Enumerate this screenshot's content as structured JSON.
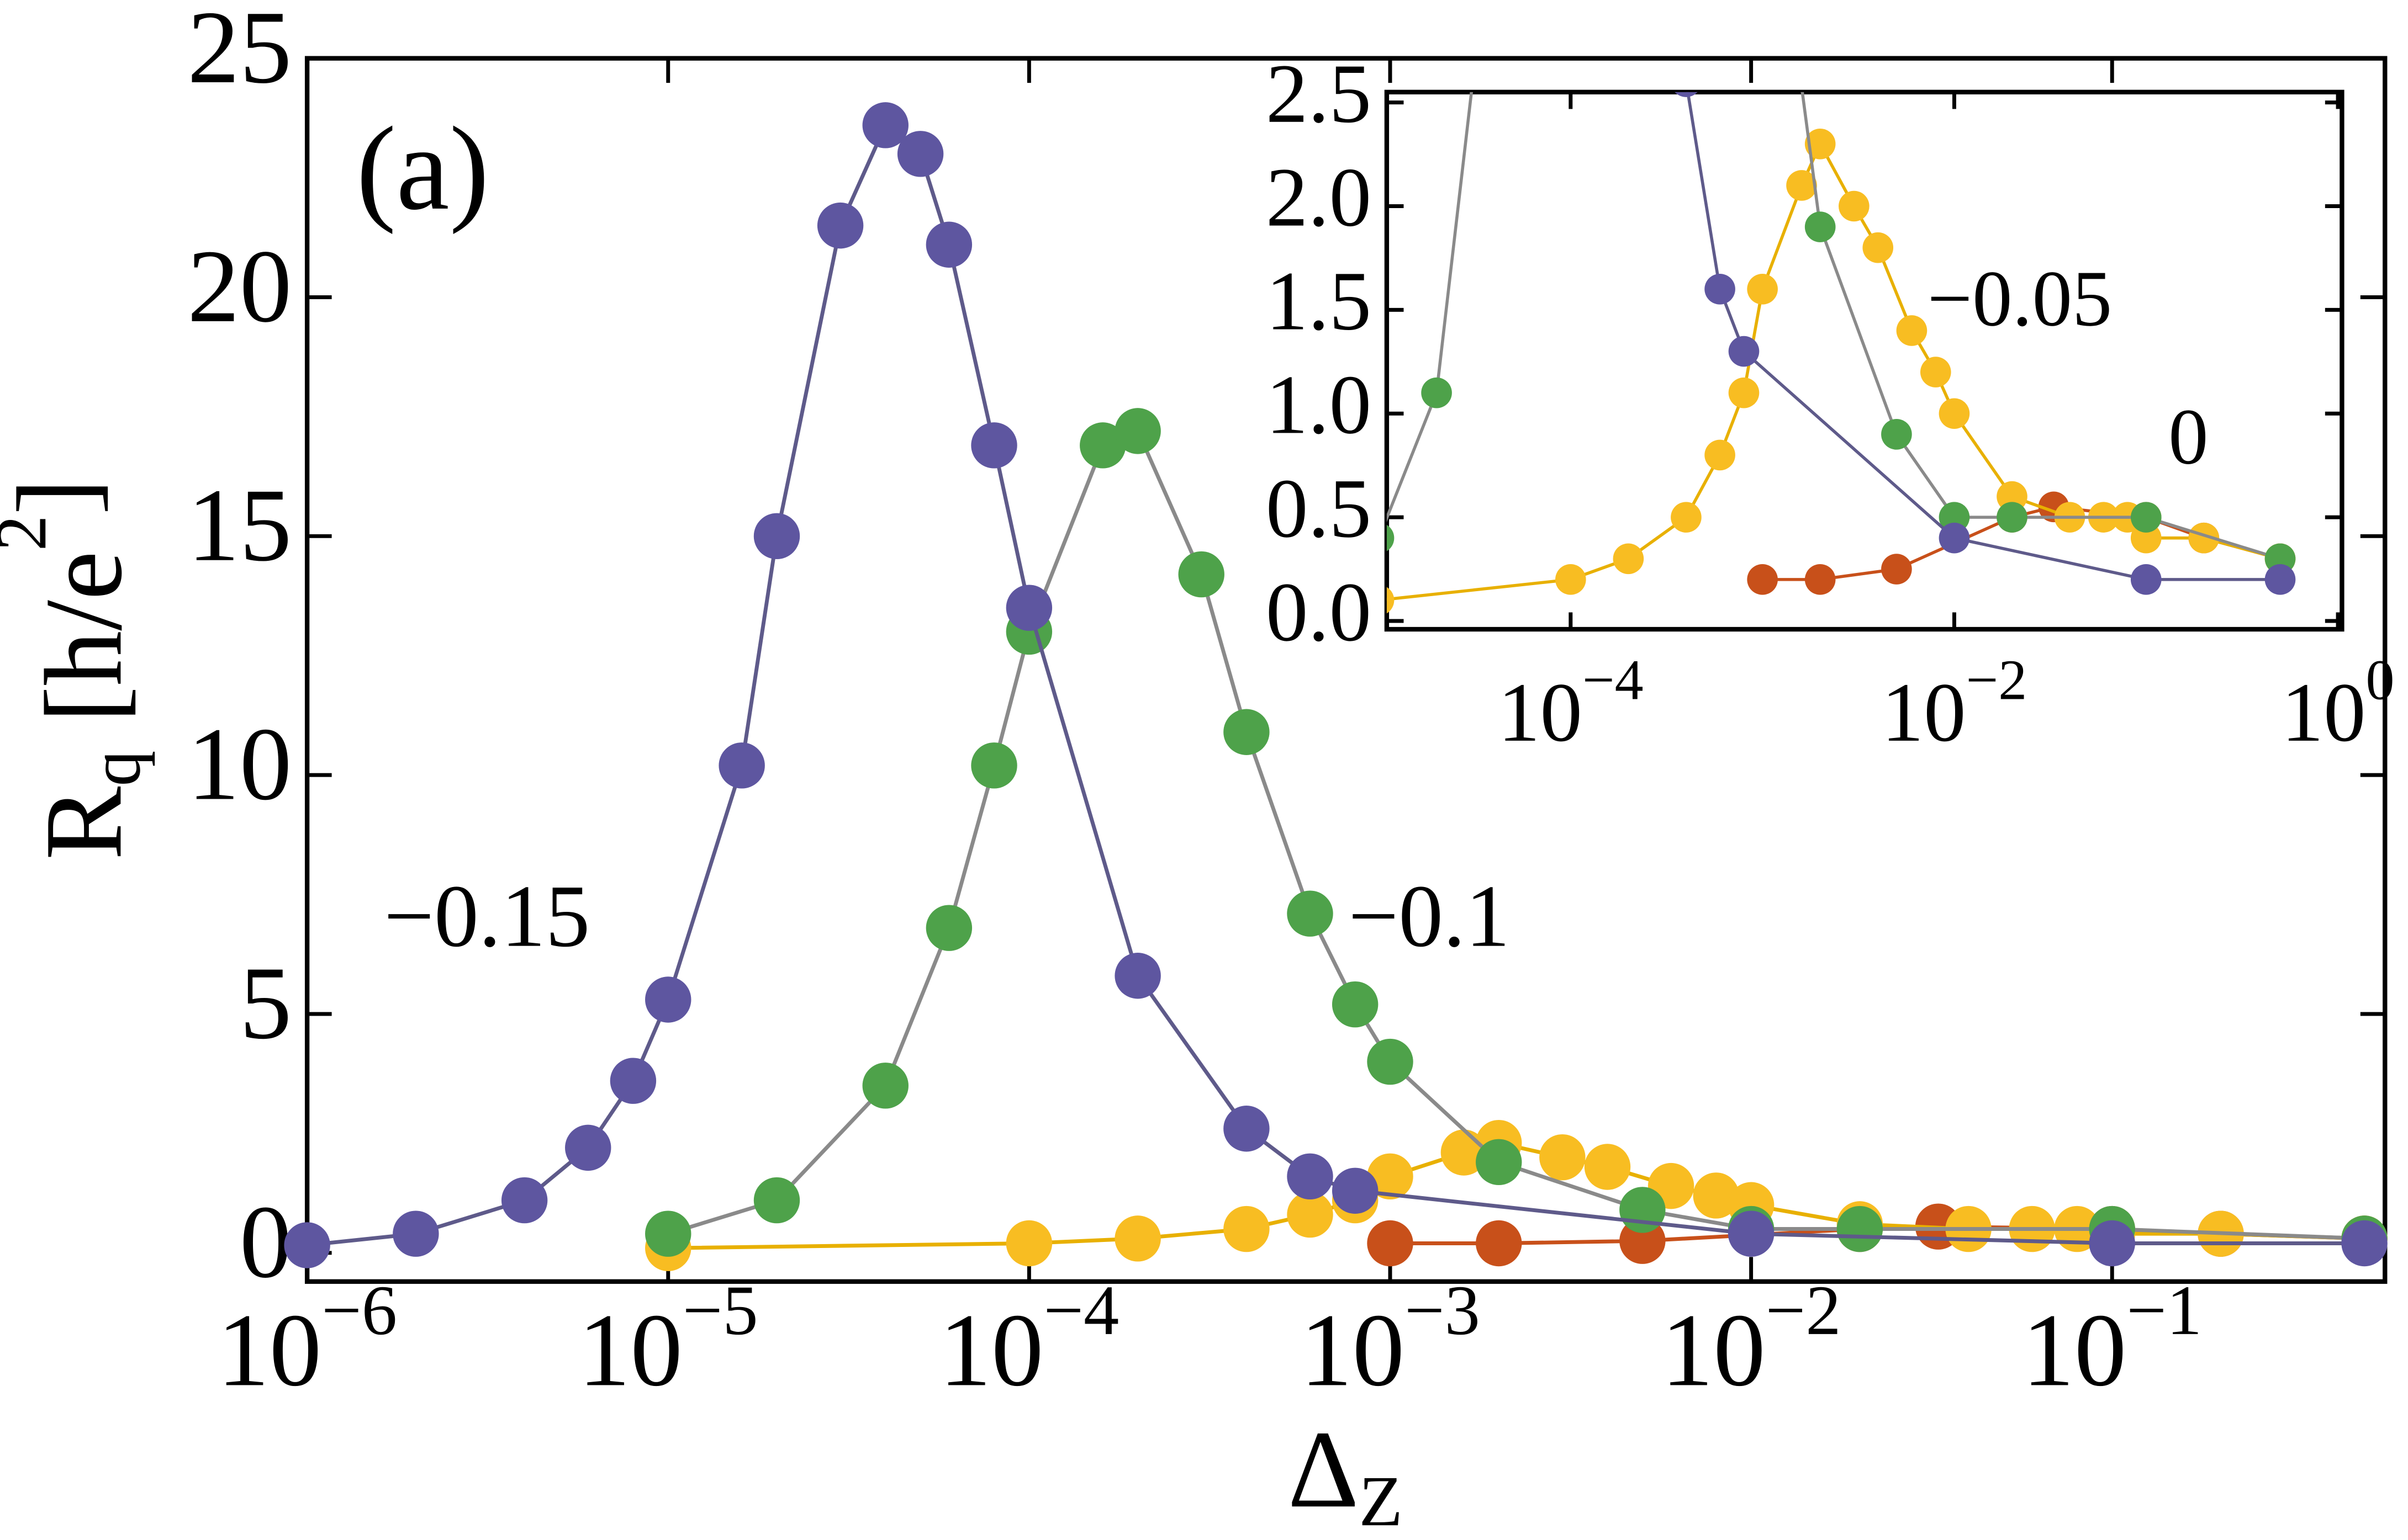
{
  "chart_data": [
    {
      "type": "line",
      "xscale": "log",
      "panel_label": "(a)",
      "xlabel": [
        "Δ",
        "Z"
      ],
      "ylabel": [
        "R",
        "q",
        " [h/e",
        "2",
        "]"
      ],
      "xlim": [
        1e-06,
        0.57
      ],
      "ylim": [
        -0.6,
        25
      ],
      "xticks": [
        {
          "value": 1e-06,
          "label": "10−6"
        },
        {
          "value": 1e-05,
          "label": "10−5"
        },
        {
          "value": 0.0001,
          "label": "10−4"
        },
        {
          "value": 0.001,
          "label": "10−3"
        },
        {
          "value": 0.01,
          "label": "10−2"
        },
        {
          "value": 0.1,
          "label": "10−1"
        }
      ],
      "yticks": [
        0,
        5,
        10,
        15,
        20,
        25
      ],
      "series": [
        {
          "name": "−0.15",
          "color": "#5e56a0",
          "line_color": "#5e5a8a",
          "x": [
            1e-06,
            2e-06,
            4e-06,
            6e-06,
            8e-06,
            1e-05,
            1.6e-05,
            2e-05,
            3e-05,
            4e-05,
            5e-05,
            6e-05,
            8e-05,
            0.0001,
            0.0002,
            0.0004,
            0.0006,
            0.0008,
            0.01,
            0.1,
            0.5
          ],
          "values": [
            0.16,
            0.4,
            1.1,
            2.2,
            3.6,
            5.3,
            10.2,
            15.0,
            21.5,
            23.6,
            23.0,
            21.1,
            16.9,
            13.5,
            5.8,
            2.6,
            1.6,
            1.3,
            0.4,
            0.2,
            0.2
          ]
        },
        {
          "name": "−0.1",
          "color": "#4ea24a",
          "line_color": "#8a8a8a",
          "x": [
            1e-05,
            2e-05,
            4e-05,
            6e-05,
            8e-05,
            0.0001,
            0.00016,
            0.0002,
            0.0003,
            0.0004,
            0.0006,
            0.0008,
            0.001,
            0.002,
            0.005,
            0.01,
            0.02,
            0.1,
            0.5
          ],
          "values": [
            0.4,
            1.1,
            3.5,
            6.8,
            10.2,
            13.0,
            16.9,
            17.2,
            14.2,
            10.9,
            7.1,
            5.2,
            4.0,
            1.9,
            0.9,
            0.5,
            0.5,
            0.5,
            0.3
          ]
        },
        {
          "name": "−0.05",
          "color": "#f8bd22",
          "line_color": "#e8b000",
          "x": [
            1e-05,
            0.0001,
            0.0002,
            0.0004,
            0.0006,
            0.0008,
            0.001,
            0.0016,
            0.002,
            0.003,
            0.004,
            0.006,
            0.008,
            0.01,
            0.02,
            0.04,
            0.06,
            0.08,
            0.1,
            0.2,
            0.5
          ],
          "values": [
            0.1,
            0.2,
            0.3,
            0.5,
            0.8,
            1.1,
            1.6,
            2.1,
            2.3,
            2.0,
            1.8,
            1.4,
            1.2,
            1.0,
            0.6,
            0.5,
            0.5,
            0.5,
            0.4,
            0.4,
            0.3
          ]
        },
        {
          "name": "0",
          "color": "#c8501a",
          "line_color": "#c8501a",
          "x": [
            0.001,
            0.002,
            0.005,
            0.02,
            0.033,
            0.1,
            0.2,
            0.5
          ],
          "values": [
            0.2,
            0.2,
            0.25,
            0.5,
            0.55,
            0.5,
            0.4,
            0.3
          ]
        }
      ]
    },
    {
      "type": "inset",
      "xscale": "log",
      "xlim": [
        1.1e-05,
        1.05
      ],
      "ylim": [
        -0.04,
        2.55
      ],
      "xticks": [
        {
          "value": 0.0001,
          "label": "10−4"
        },
        {
          "value": 0.01,
          "label": "10−2"
        },
        {
          "value": 1,
          "label": "100"
        }
      ],
      "yticks": [
        {
          "value": 0,
          "label": "0.0"
        },
        {
          "value": 0.5,
          "label": "0.5"
        },
        {
          "value": 1,
          "label": "1.0"
        },
        {
          "value": 1.5,
          "label": "1.5"
        },
        {
          "value": 2,
          "label": "2.0"
        },
        {
          "value": 2.5,
          "label": "2.5"
        }
      ]
    }
  ]
}
